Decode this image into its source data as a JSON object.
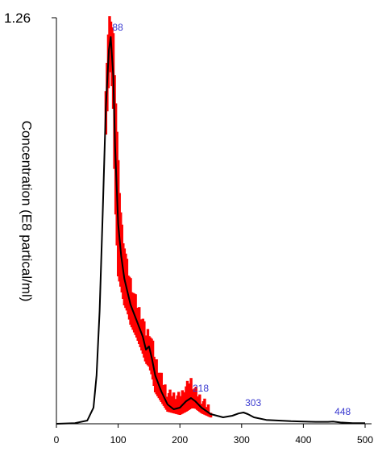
{
  "chart_data": {
    "type": "line",
    "ylabel": "Concentration (E8 partical/ml)",
    "ylim": [
      0,
      1.26
    ],
    "ymax_label": "1.26",
    "xlim": [
      0,
      500
    ],
    "xticks": [
      0,
      100,
      200,
      300,
      400,
      500
    ],
    "xtick_labels": [
      "0",
      "100",
      "200",
      "300",
      "400",
      "500"
    ],
    "colors": {
      "line": "#000000",
      "error_band": "#ff0000"
    },
    "x": [
      0,
      30,
      50,
      60,
      65,
      70,
      75,
      80,
      85,
      88,
      92,
      95,
      100,
      105,
      110,
      115,
      120,
      130,
      140,
      145,
      150,
      155,
      160,
      170,
      180,
      190,
      200,
      210,
      218,
      225,
      235,
      250,
      270,
      285,
      295,
      303,
      310,
      320,
      340,
      360,
      380,
      400,
      420,
      440,
      448,
      460,
      480,
      500
    ],
    "y": [
      0,
      0.002,
      0.01,
      0.05,
      0.15,
      0.35,
      0.65,
      0.98,
      1.16,
      1.2,
      1.08,
      0.86,
      0.62,
      0.52,
      0.45,
      0.41,
      0.37,
      0.32,
      0.27,
      0.23,
      0.24,
      0.2,
      0.15,
      0.1,
      0.06,
      0.045,
      0.05,
      0.07,
      0.08,
      0.07,
      0.05,
      0.03,
      0.02,
      0.025,
      0.032,
      0.035,
      0.03,
      0.02,
      0.012,
      0.01,
      0.008,
      0.007,
      0.006,
      0.006,
      0.007,
      0.004,
      0.002,
      0.002
    ],
    "error_band": {
      "x": [
        80,
        85,
        88,
        92,
        95,
        100,
        105,
        110,
        115,
        120,
        130,
        140,
        145,
        150,
        155,
        160,
        170,
        180,
        200,
        210,
        218,
        225,
        235,
        250
      ],
      "upper": [
        1.05,
        1.24,
        1.26,
        1.2,
        1.05,
        0.8,
        0.62,
        0.55,
        0.48,
        0.44,
        0.37,
        0.32,
        0.27,
        0.29,
        0.25,
        0.2,
        0.14,
        0.09,
        0.08,
        0.11,
        0.13,
        0.1,
        0.07,
        0.04
      ],
      "lower": [
        0.9,
        1.08,
        1.12,
        0.98,
        0.7,
        0.46,
        0.42,
        0.37,
        0.35,
        0.31,
        0.27,
        0.22,
        0.19,
        0.18,
        0.15,
        0.1,
        0.07,
        0.04,
        0.03,
        0.04,
        0.05,
        0.05,
        0.035,
        0.022
      ]
    },
    "peaks": [
      {
        "x": 88,
        "y": 1.2,
        "label": "88"
      },
      {
        "x": 218,
        "y": 0.08,
        "label": "218"
      },
      {
        "x": 303,
        "y": 0.035,
        "label": "303"
      },
      {
        "x": 448,
        "y": 0.007,
        "label": "448"
      }
    ]
  }
}
